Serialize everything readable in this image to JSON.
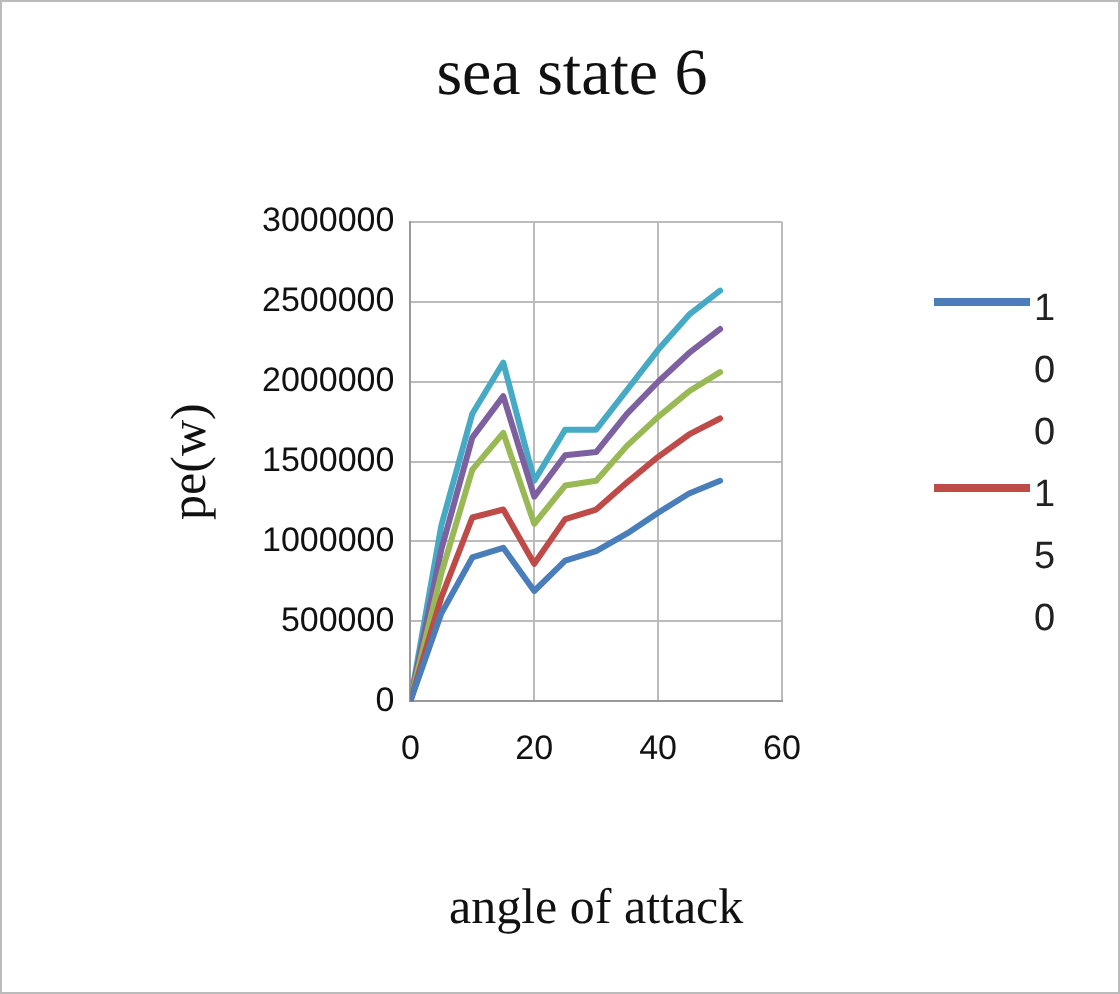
{
  "chart_data": {
    "type": "line",
    "title": "sea state 6",
    "xlabel": "angle of attack",
    "ylabel": "pe(w)",
    "x": [
      0,
      5,
      10,
      15,
      20,
      25,
      30,
      35,
      40,
      45,
      50
    ],
    "xlim": [
      0,
      60
    ],
    "xticks": [
      0,
      20,
      40,
      60
    ],
    "ylim": [
      0,
      3000000
    ],
    "yticks": [
      0,
      500000,
      1000000,
      1500000,
      2000000,
      2500000,
      3000000
    ],
    "grid": true,
    "legend": "right",
    "marker": "none",
    "line_style": "solid",
    "series": [
      {
        "name": "100",
        "color": "#4a7ebb",
        "values": [
          0,
          550000,
          900000,
          960000,
          690000,
          880000,
          940000,
          1050000,
          1180000,
          1300000,
          1380000
        ]
      },
      {
        "name": "150",
        "color": "#be4b48",
        "values": [
          0,
          650000,
          1150000,
          1200000,
          860000,
          1140000,
          1200000,
          1370000,
          1530000,
          1670000,
          1770000
        ]
      },
      {
        "color": "#98b954",
        "values": [
          0,
          800000,
          1450000,
          1680000,
          1110000,
          1350000,
          1380000,
          1600000,
          1780000,
          1940000,
          2060000
        ]
      },
      {
        "color": "#7d60a0",
        "values": [
          0,
          950000,
          1650000,
          1910000,
          1280000,
          1540000,
          1560000,
          1800000,
          2000000,
          2180000,
          2330000
        ]
      },
      {
        "color": "#46aac5",
        "values": [
          0,
          1100000,
          1800000,
          2120000,
          1380000,
          1700000,
          1700000,
          1950000,
          2200000,
          2420000,
          2570000
        ]
      }
    ]
  }
}
